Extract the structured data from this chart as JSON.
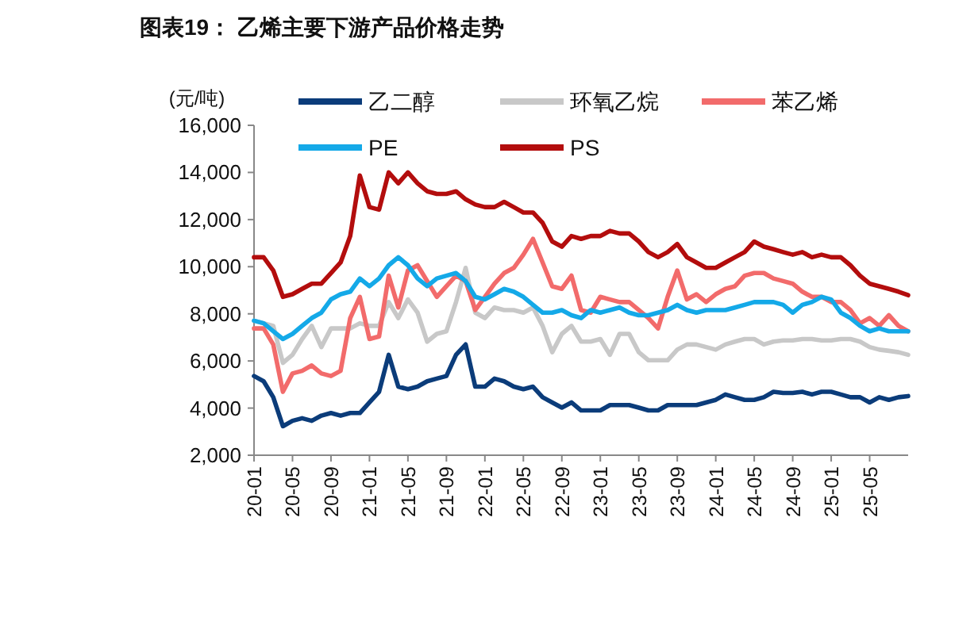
{
  "chart_data": {
    "type": "line",
    "title": "图表19： 乙烯主要下游产品价格走势",
    "ylabel": "(元/吨)",
    "categories": [
      "20-01",
      null,
      null,
      null,
      "20-05",
      null,
      null,
      null,
      "20-09",
      null,
      null,
      null,
      "21-01",
      null,
      null,
      null,
      "21-05",
      null,
      null,
      null,
      "21-09",
      null,
      null,
      null,
      "22-01",
      null,
      null,
      null,
      "22-05",
      null,
      null,
      null,
      "22-09",
      null,
      null,
      null,
      "23-01",
      null,
      null,
      null,
      "23-05",
      null,
      null,
      null,
      "23-09",
      null,
      null,
      null,
      "24-01",
      null,
      null,
      null,
      "24-05",
      null,
      null,
      null,
      "24-09",
      null,
      null,
      null,
      "25-01",
      null,
      null,
      null,
      "25-05",
      null,
      null,
      null,
      null
    ],
    "series": [
      {
        "name": "乙二醇",
        "color": "#0b3c7a",
        "values": [
          5360,
          5140,
          4460,
          3230,
          3460,
          3570,
          3460,
          3680,
          3790,
          3680,
          3790,
          3790,
          4240,
          4690,
          6260,
          4910,
          4800,
          4910,
          5140,
          5250,
          5360,
          6260,
          6700,
          4910,
          4910,
          5250,
          5140,
          4910,
          4800,
          4910,
          4460,
          4240,
          4020,
          4240,
          3900,
          3900,
          3900,
          4130,
          4130,
          4130,
          4020,
          3900,
          3900,
          4130,
          4130,
          4130,
          4130,
          4240,
          4350,
          4580,
          4460,
          4350,
          4350,
          4460,
          4690,
          4640,
          4640,
          4690,
          4580,
          4690,
          4690,
          4580,
          4460,
          4460,
          4240,
          4460,
          4350,
          4460,
          4510
        ]
      },
      {
        "name": "环氧乙烷",
        "color": "#c8c8c8",
        "values": [
          7710,
          7600,
          7490,
          5920,
          6260,
          6930,
          7490,
          6590,
          7380,
          7380,
          7380,
          7600,
          7490,
          7490,
          8500,
          7820,
          8610,
          8050,
          6820,
          7150,
          7260,
          8500,
          9950,
          8050,
          7820,
          8270,
          8160,
          8160,
          8050,
          8270,
          7490,
          6370,
          7150,
          7490,
          6820,
          6820,
          6930,
          6260,
          7150,
          7150,
          6370,
          6030,
          6030,
          6030,
          6480,
          6700,
          6700,
          6590,
          6480,
          6700,
          6820,
          6930,
          6930,
          6700,
          6820,
          6870,
          6870,
          6930,
          6930,
          6870,
          6870,
          6930,
          6930,
          6820,
          6590,
          6480,
          6430,
          6370,
          6260
        ]
      },
      {
        "name": "苯乙烯",
        "color": "#f26b6b",
        "values": [
          7380,
          7380,
          6700,
          4690,
          5470,
          5580,
          5810,
          5470,
          5360,
          5580,
          7820,
          8720,
          6930,
          7040,
          9620,
          8270,
          9840,
          10060,
          9390,
          8720,
          9170,
          9620,
          9390,
          8160,
          8720,
          9280,
          9730,
          9950,
          10510,
          11180,
          10180,
          9170,
          9060,
          9620,
          8160,
          8050,
          8720,
          8610,
          8500,
          8500,
          8160,
          7820,
          7380,
          8720,
          9840,
          8610,
          8830,
          8500,
          8830,
          9060,
          9170,
          9620,
          9730,
          9730,
          9500,
          9390,
          9280,
          8940,
          8720,
          8720,
          8500,
          8500,
          8160,
          7600,
          7820,
          7490,
          7940,
          7490,
          7260
        ]
      },
      {
        "name": "PE",
        "color": "#14a9e8",
        "values": [
          7710,
          7600,
          7260,
          6930,
          7150,
          7490,
          7820,
          8050,
          8610,
          8830,
          8940,
          9500,
          9170,
          9500,
          10060,
          10400,
          10060,
          9500,
          9170,
          9500,
          9620,
          9730,
          9390,
          8720,
          8610,
          8830,
          9060,
          8940,
          8720,
          8380,
          8050,
          8050,
          8160,
          7940,
          7820,
          8160,
          8050,
          8160,
          8270,
          8050,
          7940,
          7940,
          8050,
          8160,
          8380,
          8160,
          8050,
          8160,
          8160,
          8160,
          8270,
          8380,
          8500,
          8500,
          8500,
          8380,
          8050,
          8380,
          8500,
          8720,
          8610,
          8050,
          7820,
          7490,
          7260,
          7380,
          7260,
          7260,
          7260
        ]
      },
      {
        "name": "PS",
        "color": "#b30d0d",
        "values": [
          10400,
          10400,
          9840,
          8720,
          8830,
          9060,
          9280,
          9280,
          9730,
          10180,
          11300,
          13870,
          12530,
          12420,
          14000,
          13540,
          14000,
          13540,
          13200,
          13090,
          13090,
          13200,
          12860,
          12640,
          12530,
          12530,
          12750,
          12530,
          12300,
          12300,
          11860,
          11070,
          10850,
          11300,
          11180,
          11300,
          11300,
          11520,
          11410,
          11410,
          11070,
          10620,
          10400,
          10620,
          10960,
          10400,
          10180,
          9950,
          9950,
          10180,
          10400,
          10620,
          11070,
          10850,
          10740,
          10620,
          10510,
          10620,
          10400,
          10510,
          10400,
          10400,
          10060,
          9620,
          9280,
          9170,
          9060,
          8940,
          8790
        ]
      }
    ],
    "ylim": [
      2000,
      16000
    ],
    "yticks": [
      {
        "value": 2000,
        "label": "2,000"
      },
      {
        "value": 4000,
        "label": "4,000"
      },
      {
        "value": 6000,
        "label": "6,000"
      },
      {
        "value": 8000,
        "label": "8,000"
      },
      {
        "value": 10000,
        "label": "10,000"
      },
      {
        "value": 12000,
        "label": "12,000"
      },
      {
        "value": 14000,
        "label": "14,000"
      },
      {
        "value": 16000,
        "label": "16,000"
      }
    ],
    "legend": "top",
    "grid": false,
    "marker": "none",
    "line_style": "solid"
  }
}
